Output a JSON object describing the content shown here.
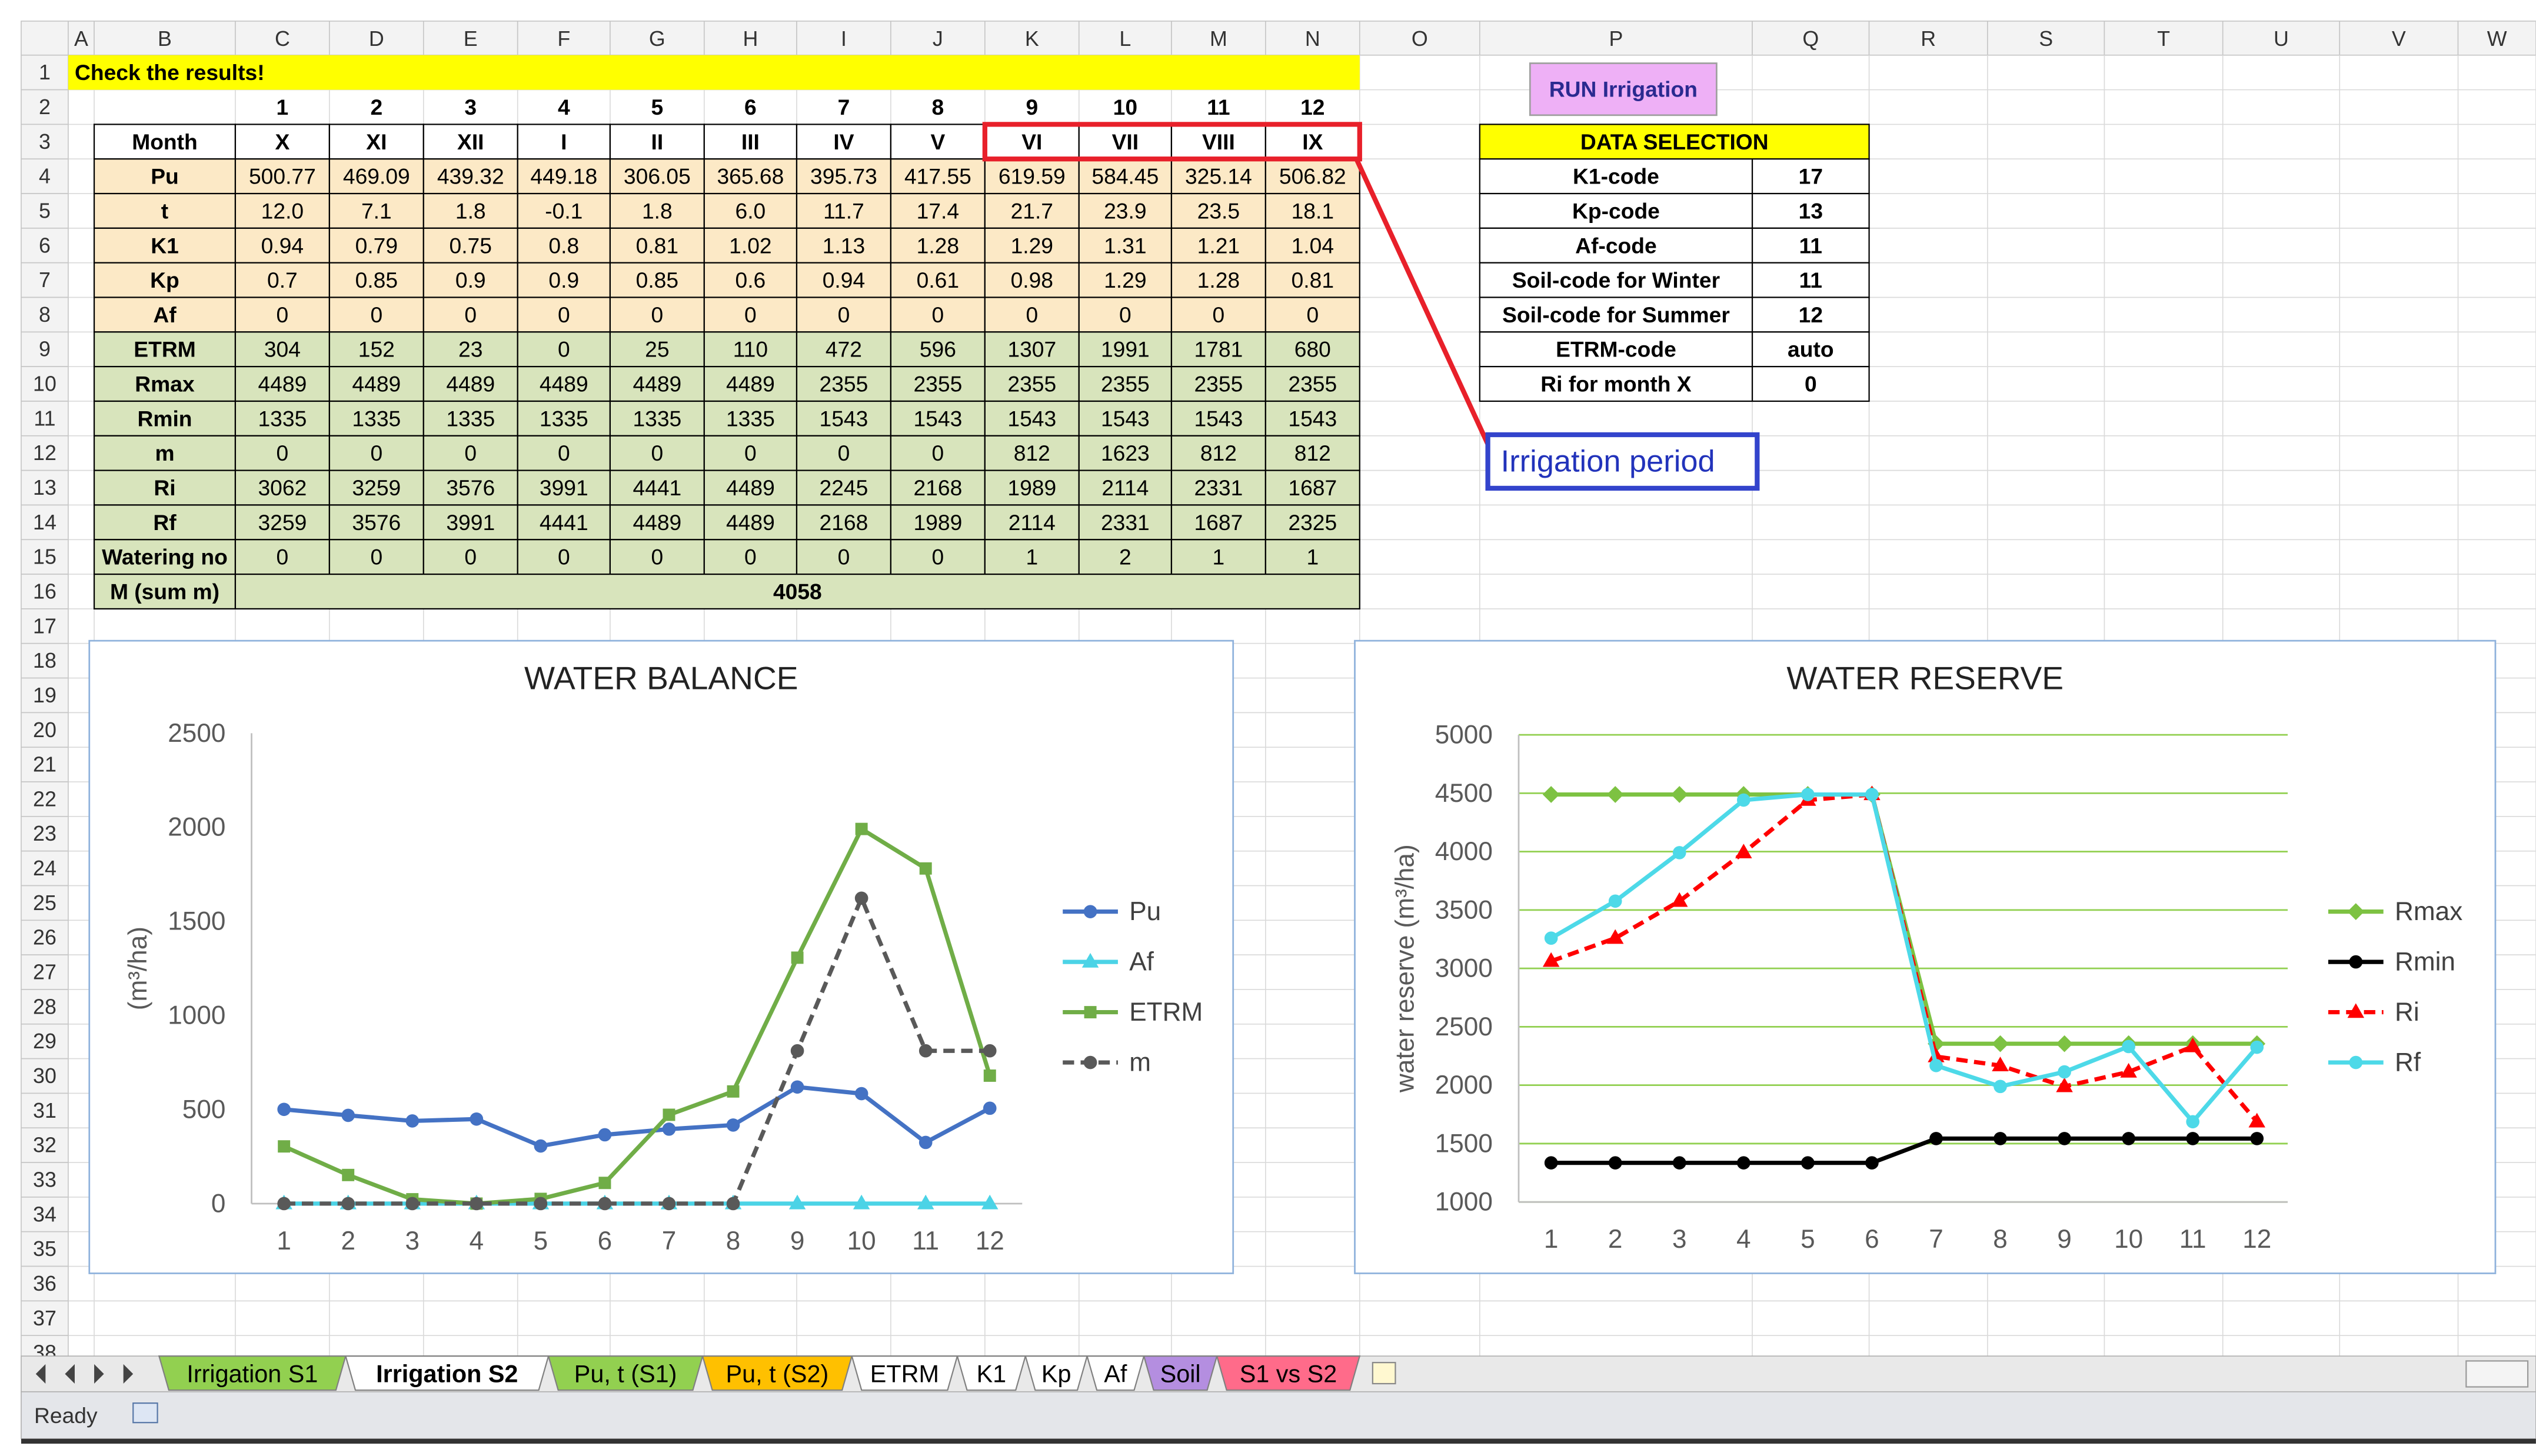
{
  "sheet": {
    "column_headers": [
      "A",
      "B",
      "C",
      "D",
      "E",
      "F",
      "G",
      "H",
      "I",
      "J",
      "K",
      "L",
      "M",
      "N",
      "O",
      "P",
      "Q",
      "R",
      "S",
      "T",
      "U",
      "V",
      "W"
    ],
    "row_headers": [
      1,
      2,
      3,
      4,
      5,
      6,
      7,
      8,
      9,
      10,
      11,
      12,
      13,
      14,
      15,
      16,
      17,
      18,
      19,
      20,
      21,
      22,
      23,
      24,
      25,
      26,
      27,
      28,
      29,
      30,
      31,
      32,
      33,
      34,
      35,
      36,
      37,
      38
    ],
    "title": "Check the results!",
    "month_numbers": [
      1,
      2,
      3,
      4,
      5,
      6,
      7,
      8,
      9,
      10,
      11,
      12
    ],
    "table": {
      "rows": [
        [
          "Month",
          "X",
          "XI",
          "XII",
          "I",
          "II",
          "III",
          "IV",
          "V",
          "VI",
          "VII",
          "VIII",
          "IX"
        ],
        [
          "Pu",
          500.77,
          469.09,
          439.32,
          449.18,
          306.05,
          365.68,
          395.73,
          417.55,
          619.59,
          584.45,
          325.14,
          506.82
        ],
        [
          "t",
          "12.0",
          7.1,
          1.8,
          -0.1,
          1.8,
          "6.0",
          11.7,
          17.4,
          21.7,
          23.9,
          23.5,
          18.1
        ],
        [
          "K1",
          0.94,
          0.79,
          0.75,
          0.8,
          0.81,
          1.02,
          1.13,
          1.28,
          1.29,
          1.31,
          1.21,
          1.04
        ],
        [
          "Kp",
          0.7,
          0.85,
          0.9,
          0.9,
          0.85,
          0.6,
          0.94,
          0.61,
          0.98,
          1.29,
          1.28,
          0.81
        ],
        [
          "Af",
          0,
          0,
          0,
          0,
          0,
          0,
          0,
          0,
          0,
          0,
          0,
          0
        ],
        [
          "ETRM",
          304,
          152,
          23,
          0,
          25,
          110,
          472,
          596,
          1307,
          1991,
          1781,
          680
        ],
        [
          "Rmax",
          4489,
          4489,
          4489,
          4489,
          4489,
          4489,
          2355,
          2355,
          2355,
          2355,
          2355,
          2355
        ],
        [
          "Rmin",
          1335,
          1335,
          1335,
          1335,
          1335,
          1335,
          1543,
          1543,
          1543,
          1543,
          1543,
          1543
        ],
        [
          "m",
          0,
          0,
          0,
          0,
          0,
          0,
          0,
          0,
          812,
          1623,
          812,
          812
        ],
        [
          "Ri",
          3062,
          3259,
          3576,
          3991,
          4441,
          4489,
          2245,
          2168,
          1989,
          2114,
          2331,
          1687
        ],
        [
          "Rf",
          3259,
          3576,
          3991,
          4441,
          4489,
          4489,
          2168,
          1989,
          2114,
          2331,
          1687,
          2325
        ],
        [
          "Watering no",
          0,
          0,
          0,
          0,
          0,
          0,
          0,
          0,
          1,
          2,
          1,
          1
        ]
      ]
    },
    "total": {
      "label": "M (sum m)",
      "value": 4058
    }
  },
  "button": "RUN Irrigation",
  "data_selection": {
    "title": "DATA SELECTION",
    "rows": [
      [
        "K1-code",
        17
      ],
      [
        "Kp-code",
        13
      ],
      [
        "Af-code",
        11
      ],
      [
        "Soil-code for Winter",
        11
      ],
      [
        "Soil-code for Summer",
        12
      ],
      [
        "ETRM-code",
        "auto"
      ],
      [
        "Ri for month X",
        0
      ]
    ]
  },
  "annotation": "Irrigation period",
  "tabs": [
    "Irrigation S1",
    "Irrigation S2",
    "Pu, t (S1)",
    "Pu, t (S2)",
    "ETRM",
    "K1",
    "Kp",
    "Af",
    "Soil",
    "S1 vs S2"
  ],
  "status": "Ready",
  "chart_data": [
    {
      "type": "line",
      "title": "WATER BALANCE",
      "y_label": "(m³/ha)",
      "categories": [
        1,
        2,
        3,
        4,
        5,
        6,
        7,
        8,
        9,
        10,
        11,
        12
      ],
      "ylim": [
        0,
        2500
      ],
      "yticks": [
        0,
        500,
        1000,
        1500,
        2000,
        2500
      ],
      "grid": false,
      "legend": "right",
      "series": [
        {
          "name": "Pu",
          "color": "#4472c4",
          "marker": "circle",
          "dashed": false,
          "values": [
            500.77,
            469.09,
            439.32,
            449.18,
            306.05,
            365.68,
            395.73,
            417.55,
            619.59,
            584.45,
            325.14,
            506.82
          ]
        },
        {
          "name": "Af",
          "color": "#4bd3e6",
          "marker": "triangle",
          "dashed": false,
          "values": [
            0,
            0,
            0,
            0,
            0,
            0,
            0,
            0,
            0,
            0,
            0,
            0
          ]
        },
        {
          "name": "ETRM",
          "color": "#70ad47",
          "marker": "square",
          "dashed": false,
          "values": [
            304,
            152,
            23,
            0,
            25,
            110,
            472,
            596,
            1307,
            1991,
            1781,
            680
          ]
        },
        {
          "name": "m",
          "color": "#595959",
          "marker": "circle",
          "dashed": true,
          "values": [
            0,
            0,
            0,
            0,
            0,
            0,
            0,
            0,
            812,
            1623,
            812,
            812
          ]
        }
      ]
    },
    {
      "type": "line",
      "title": "WATER RESERVE",
      "y_label": "water reserve (m³/ha)",
      "categories": [
        1,
        2,
        3,
        4,
        5,
        6,
        7,
        8,
        9,
        10,
        11,
        12
      ],
      "ylim": [
        1000,
        5000
      ],
      "yticks": [
        1000,
        1500,
        2000,
        2500,
        3000,
        3500,
        4000,
        4500,
        5000
      ],
      "grid": true,
      "grid_color": "#92d050",
      "legend": "right",
      "series": [
        {
          "name": "Rmax",
          "color": "#7dc242",
          "marker": "diamond",
          "dashed": false,
          "values": [
            4489,
            4489,
            4489,
            4489,
            4489,
            4489,
            2355,
            2355,
            2355,
            2355,
            2355,
            2355
          ]
        },
        {
          "name": "Rmin",
          "color": "#000000",
          "marker": "circle",
          "dashed": false,
          "values": [
            1335,
            1335,
            1335,
            1335,
            1335,
            1335,
            1543,
            1543,
            1543,
            1543,
            1543,
            1543
          ]
        },
        {
          "name": "Ri",
          "color": "#ff0000",
          "marker": "triangle",
          "dashed": true,
          "values": [
            3062,
            3259,
            3576,
            3991,
            4441,
            4489,
            2245,
            2168,
            1989,
            2114,
            2331,
            1687
          ]
        },
        {
          "name": "Rf",
          "color": "#4dd9e8",
          "marker": "circle",
          "dashed": false,
          "values": [
            3259,
            3576,
            3991,
            4441,
            4489,
            4489,
            2168,
            1989,
            2114,
            2331,
            1687,
            2325
          ]
        }
      ]
    }
  ]
}
